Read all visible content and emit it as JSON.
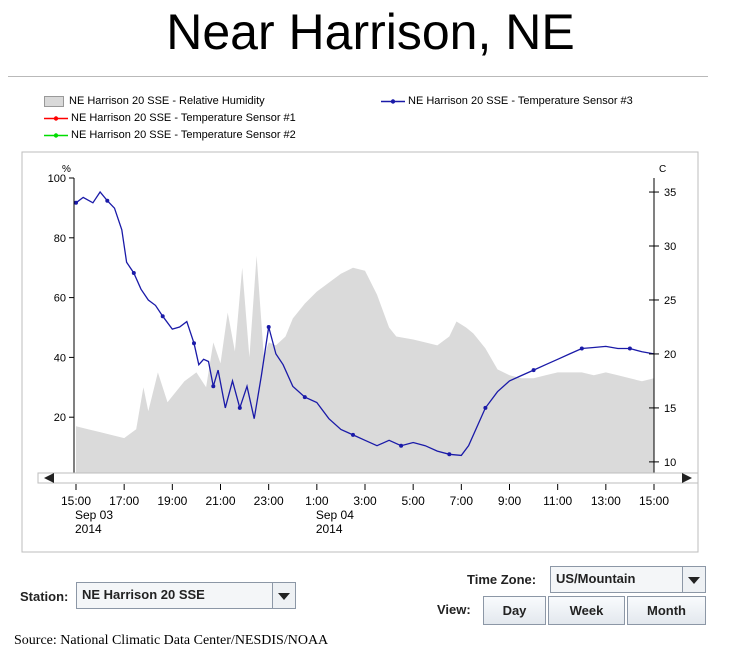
{
  "page": {
    "title": "Near Harrison, NE"
  },
  "legend": {
    "items": [
      {
        "label": "NE Harrison 20 SSE - Relative Humidity",
        "color": "#d9d9d9"
      },
      {
        "label": "NE Harrison 20 SSE - Temperature Sensor #1",
        "color": "#ff0000"
      },
      {
        "label": "NE Harrison 20 SSE - Temperature Sensor #2",
        "color": "#00dd00"
      },
      {
        "label": "NE Harrison 20 SSE - Temperature Sensor #3",
        "color": "#1a1aa8"
      }
    ]
  },
  "chart_data": {
    "type": "area",
    "left_axis_unit": "%",
    "right_axis_unit": "C",
    "ylim_left": [
      0,
      100
    ],
    "ylim_right": [
      8.6,
      36.3
    ],
    "left_ticks": [
      0,
      20,
      40,
      60,
      80,
      100
    ],
    "right_ticks": [
      10,
      15,
      20,
      25,
      30,
      35
    ],
    "x_ticks": [
      {
        "hour": 0,
        "label": "15:00",
        "sub1": "Sep 03",
        "sub2": "2014"
      },
      {
        "hour": 2,
        "label": "17:00",
        "sub1": "",
        "sub2": ""
      },
      {
        "hour": 4,
        "label": "19:00",
        "sub1": "",
        "sub2": ""
      },
      {
        "hour": 6,
        "label": "21:00",
        "sub1": "",
        "sub2": ""
      },
      {
        "hour": 8,
        "label": "23:00",
        "sub1": "",
        "sub2": ""
      },
      {
        "hour": 10,
        "label": "1:00",
        "sub1": "Sep 04",
        "sub2": "2014"
      },
      {
        "hour": 12,
        "label": "3:00",
        "sub1": "",
        "sub2": ""
      },
      {
        "hour": 14,
        "label": "5:00",
        "sub1": "",
        "sub2": ""
      },
      {
        "hour": 16,
        "label": "7:00",
        "sub1": "",
        "sub2": ""
      },
      {
        "hour": 18,
        "label": "9:00",
        "sub1": "",
        "sub2": ""
      },
      {
        "hour": 20,
        "label": "11:00",
        "sub1": "",
        "sub2": ""
      },
      {
        "hour": 22,
        "label": "13:00",
        "sub1": "",
        "sub2": ""
      },
      {
        "hour": 24,
        "label": "15:00",
        "sub1": "",
        "sub2": ""
      }
    ],
    "xlim_hours": [
      0,
      24
    ],
    "humidity": {
      "name": "NE Harrison 20 SSE - Relative Humidity",
      "x": [
        0,
        0.5,
        1,
        1.5,
        2,
        2.5,
        2.8,
        3,
        3.4,
        3.8,
        4,
        4.5,
        5,
        5.4,
        5.7,
        6,
        6.3,
        6.6,
        6.9,
        7.2,
        7.5,
        7.8,
        8,
        8.3,
        8.7,
        9,
        9.5,
        10,
        10.5,
        11,
        11.5,
        12,
        12.5,
        13,
        13.3,
        14,
        14.5,
        15,
        15.5,
        15.8,
        16.2,
        16.5,
        17,
        17.5,
        18,
        18.5,
        19,
        19.5,
        20,
        20.5,
        21,
        21.5,
        22,
        22.5,
        23,
        23.5,
        24
      ],
      "values": [
        17,
        16,
        15,
        14,
        13,
        16,
        30,
        22,
        35,
        25,
        27,
        32,
        35,
        30,
        45,
        38,
        55,
        42,
        70,
        40,
        74,
        40,
        45,
        44,
        47,
        53,
        58,
        62,
        65,
        68,
        70,
        69,
        61,
        50,
        47,
        46,
        45,
        44,
        47,
        52,
        50,
        48,
        43,
        36,
        34,
        33,
        33,
        34,
        35,
        35,
        35,
        34,
        35,
        34,
        33,
        32,
        33
      ]
    },
    "temperature": {
      "name": "NE Harrison 20 SSE - Temperature Sensor #3",
      "x": [
        0,
        0.3,
        0.7,
        1,
        1.3,
        1.6,
        1.9,
        2.1,
        2.4,
        2.7,
        3,
        3.3,
        3.6,
        4,
        4.3,
        4.6,
        4.9,
        5.1,
        5.3,
        5.5,
        5.7,
        5.9,
        6.2,
        6.5,
        6.8,
        7.1,
        7.4,
        7.7,
        8,
        8.3,
        8.6,
        9,
        9.5,
        10,
        10.5,
        11,
        11.5,
        12,
        12.5,
        13,
        13.5,
        14,
        14.5,
        15,
        15.5,
        16,
        16.3,
        16.6,
        17,
        17.5,
        18,
        18.5,
        19,
        19.5,
        20,
        20.5,
        21,
        21.5,
        22,
        22.5,
        23,
        23.5,
        24
      ],
      "values": [
        34.0,
        34.5,
        34.0,
        35.0,
        34.2,
        33.5,
        31.5,
        28.5,
        27.5,
        26.0,
        25.0,
        24.5,
        23.5,
        22.3,
        22.5,
        23.0,
        21.0,
        19.0,
        19.5,
        19.3,
        17.0,
        18.5,
        15.0,
        17.5,
        15.0,
        17.0,
        14.0,
        18.0,
        22.5,
        20.0,
        19.0,
        17.0,
        16.0,
        15.5,
        14.0,
        13.0,
        12.5,
        12.0,
        11.5,
        12.0,
        11.5,
        11.8,
        11.5,
        11.0,
        10.7,
        10.6,
        11.5,
        13.0,
        15.0,
        16.5,
        17.5,
        18.0,
        18.5,
        19.0,
        19.5,
        20.0,
        20.5,
        20.6,
        20.7,
        20.5,
        20.5,
        20.2,
        20.0
      ]
    }
  },
  "controls": {
    "station_label": "Station:",
    "station_value": "NE Harrison 20 SSE",
    "timezone_label": "Time Zone:",
    "timezone_value": "US/Mountain",
    "view_label": "View:",
    "buttons": {
      "day": "Day",
      "week": "Week",
      "month": "Month"
    }
  },
  "source": "Source: National Climatic Data Center/NESDIS/NOAA"
}
